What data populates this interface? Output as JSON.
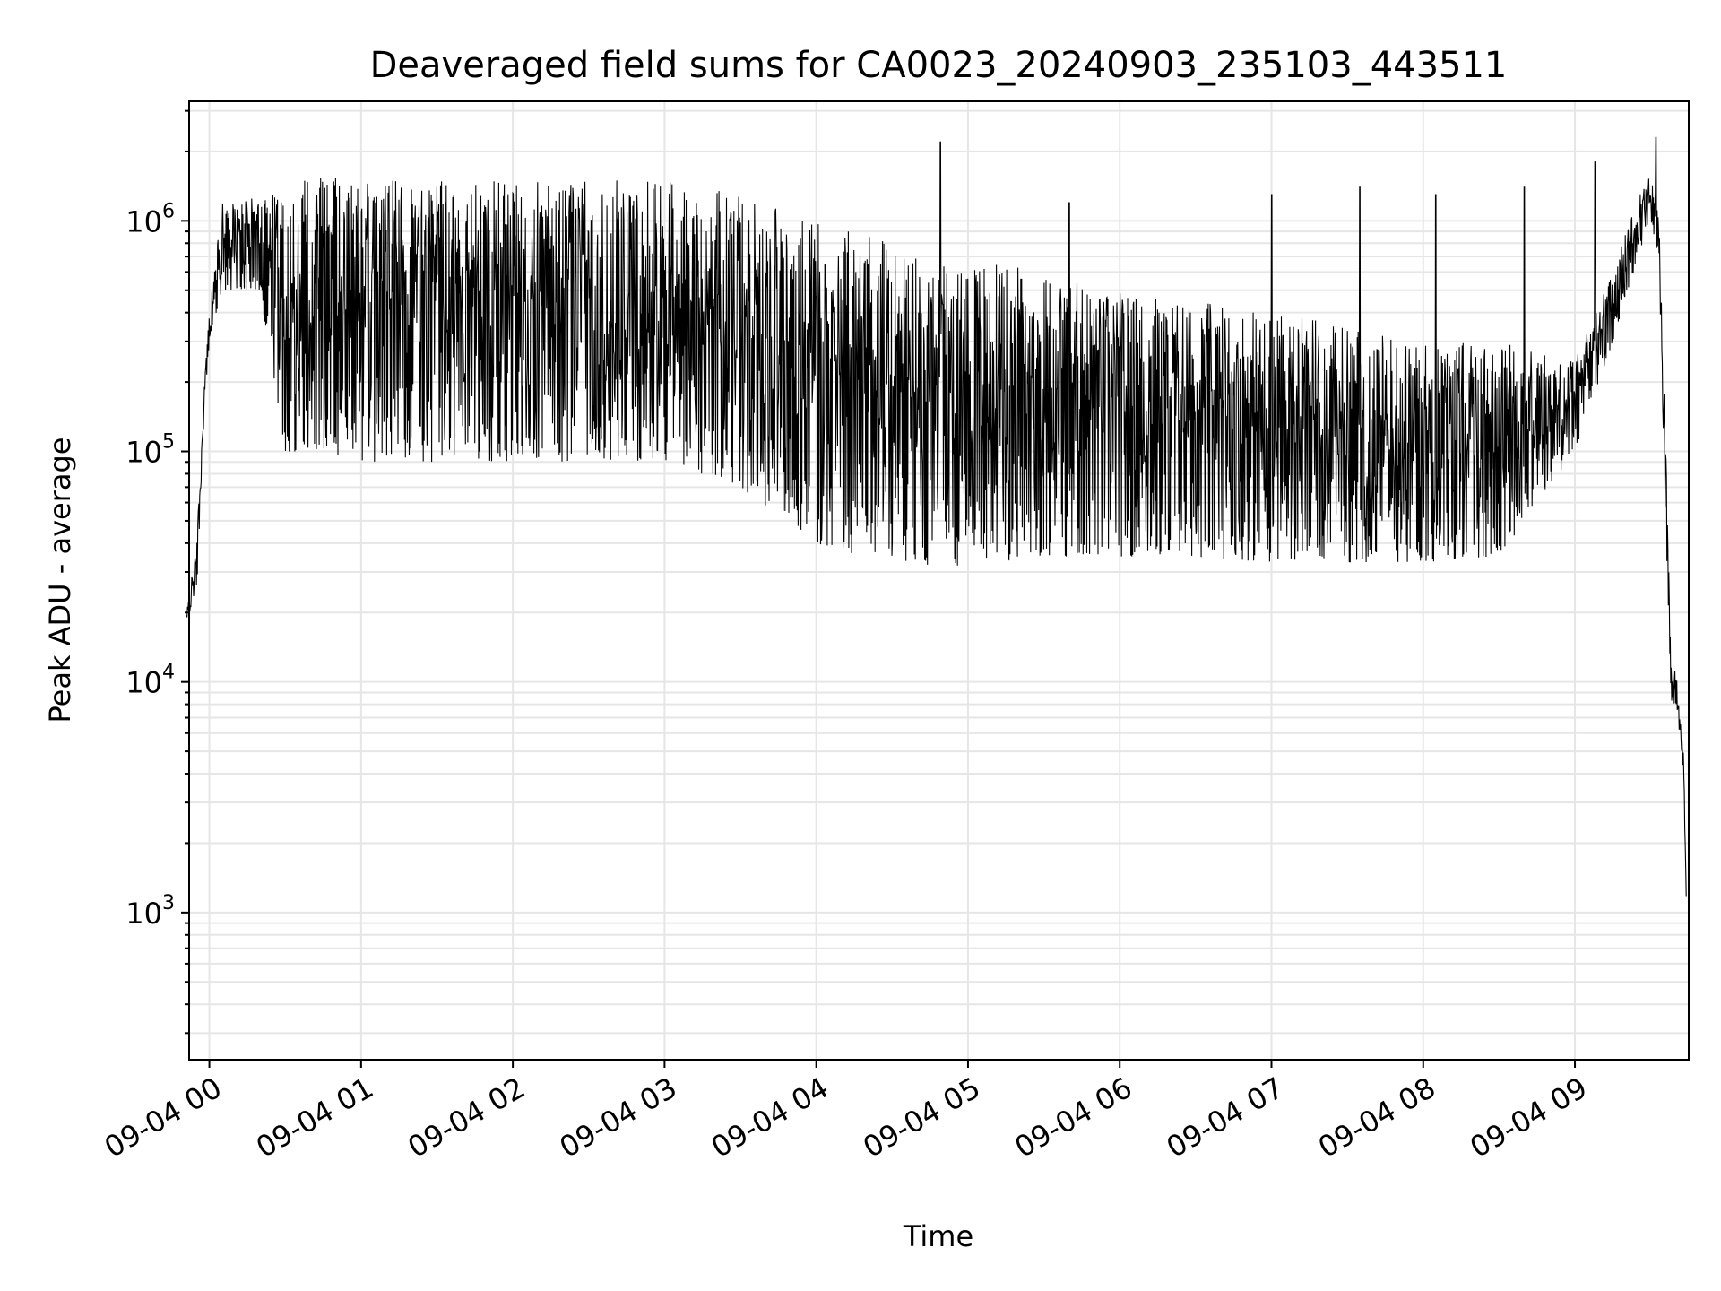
{
  "chart_data": {
    "type": "line",
    "title": "Deaveraged field sums for CA0023_20240903_235103_443511",
    "xlabel": "Time",
    "ylabel": "Peak ADU - average",
    "yscale": "log",
    "ylim": [
      230,
      3300000
    ],
    "xlim": [
      "2024-09-03 23:52",
      "2024-09-04 09:45"
    ],
    "grid": true,
    "x_tick_labels": [
      "09-04 00",
      "09-04 01",
      "09-04 02",
      "09-04 03",
      "09-04 04",
      "09-04 05",
      "09-04 06",
      "09-04 07",
      "09-04 08",
      "09-04 09"
    ],
    "y_tick_labels": [
      {
        "value": 1000,
        "base": "10",
        "exp": "3"
      },
      {
        "value": 10000,
        "base": "10",
        "exp": "4"
      },
      {
        "value": 100000,
        "base": "10",
        "exp": "5"
      },
      {
        "value": 1000000,
        "base": "10",
        "exp": "6"
      }
    ],
    "series": [
      {
        "color": "#000000",
        "x": [
          "2024-09-03 23:51",
          "2024-09-03 23:55",
          "2024-09-03 23:58",
          "2024-09-04 00:00",
          "2024-09-04 00:05",
          "2024-09-04 00:10",
          "2024-09-04 00:20",
          "2024-09-04 00:30",
          "2024-09-04 00:45",
          "2024-09-04 01:00",
          "2024-09-04 01:30",
          "2024-09-04 02:00",
          "2024-09-04 02:30",
          "2024-09-04 03:00",
          "2024-09-04 03:30",
          "2024-09-04 04:00",
          "2024-09-04 04:30",
          "2024-09-04 05:00",
          "2024-09-04 05:30",
          "2024-09-04 06:00",
          "2024-09-04 06:30",
          "2024-09-04 07:00",
          "2024-09-04 07:30",
          "2024-09-04 08:00",
          "2024-09-04 08:30",
          "2024-09-04 09:00",
          "2024-09-04 09:15",
          "2024-09-04 09:25",
          "2024-09-04 09:30",
          "2024-09-04 09:33",
          "2024-09-04 09:35",
          "2024-09-04 09:38",
          "2024-09-04 09:40",
          "2024-09-04 09:43",
          "2024-09-04 09:44"
        ],
        "y_upper": [
          20000,
          40000,
          200000,
          400000,
          1200000,
          1200000,
          1300000,
          1500000,
          1600000,
          1500000,
          1500000,
          1500000,
          1500000,
          1500000,
          1300000,
          1000000,
          800000,
          700000,
          600000,
          500000,
          450000,
          400000,
          350000,
          300000,
          300000,
          250000,
          600000,
          1300000,
          1600000,
          1200000,
          300000,
          12000,
          11000,
          5000,
          1200
        ],
        "y_lower": [
          18000,
          25000,
          150000,
          300000,
          500000,
          500000,
          500000,
          100000,
          100000,
          90000,
          90000,
          90000,
          90000,
          90000,
          70000,
          40000,
          32000,
          32000,
          35000,
          35000,
          35000,
          33000,
          33000,
          33000,
          35000,
          100000,
          300000,
          700000,
          1000000,
          700000,
          100000,
          8000,
          8000,
          4000,
          1000
        ],
        "spike_peaks": [
          {
            "x": "2024-09-04 04:49",
            "y": 2200000
          },
          {
            "x": "2024-09-04 05:40",
            "y": 1200000
          },
          {
            "x": "2024-09-04 07:00",
            "y": 1300000
          },
          {
            "x": "2024-09-04 07:35",
            "y": 1400000
          },
          {
            "x": "2024-09-04 08:05",
            "y": 1300000
          },
          {
            "x": "2024-09-04 08:40",
            "y": 1400000
          },
          {
            "x": "2024-09-04 09:08",
            "y": 1800000
          },
          {
            "x": "2024-09-04 09:32",
            "y": 2300000
          }
        ]
      }
    ]
  }
}
